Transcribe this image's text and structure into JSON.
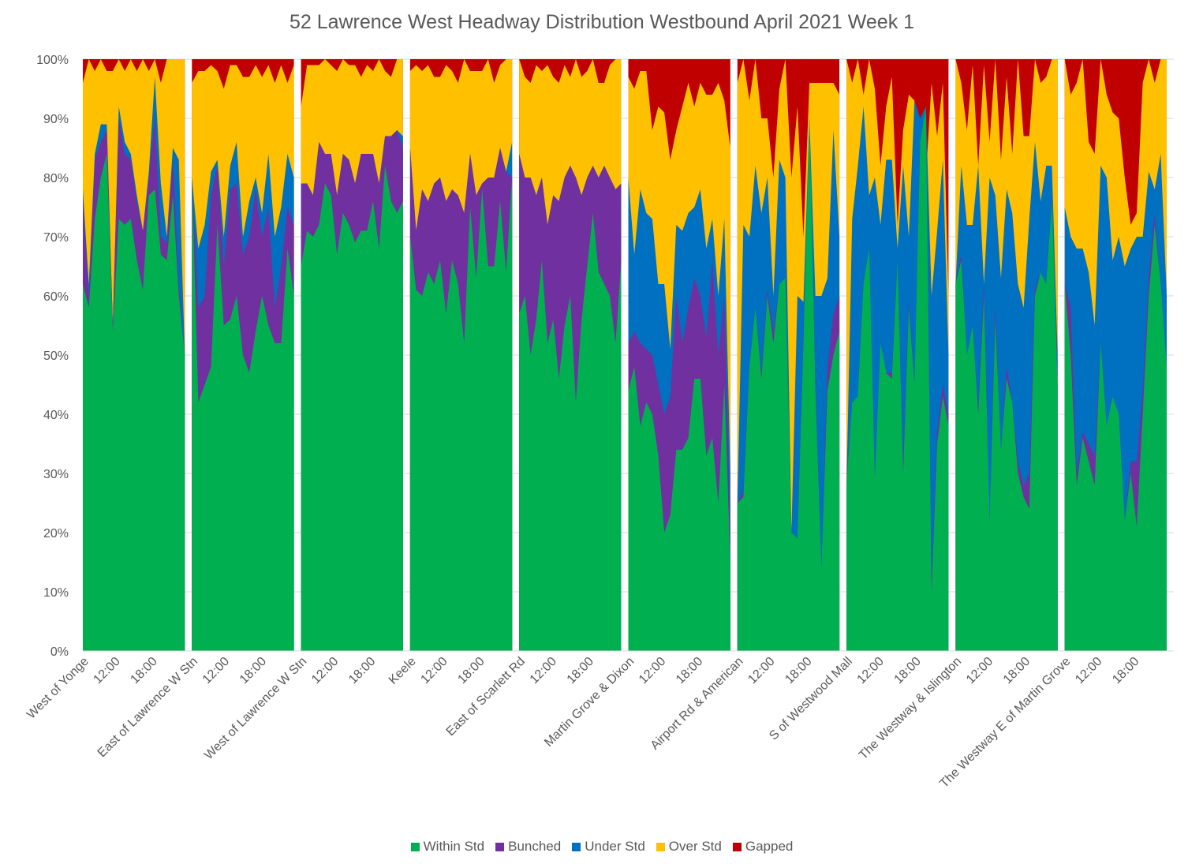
{
  "chart_data": {
    "type": "area",
    "stacked": "percent",
    "title": "52 Lawrence West  Headway Distribution Westbound April 2021 Week 1",
    "xlabel": "",
    "ylabel": "",
    "ylim": [
      0,
      100
    ],
    "yticks": [
      "0%",
      "10%",
      "20%",
      "30%",
      "40%",
      "50%",
      "60%",
      "70%",
      "80%",
      "90%",
      "100%"
    ],
    "grid": true,
    "legend_position": "bottom",
    "series": [
      {
        "name": "Within Std",
        "color": "#00B050"
      },
      {
        "name": "Bunched",
        "color": "#7030A0"
      },
      {
        "name": "Under Std",
        "color": "#0070C0"
      },
      {
        "name": "Over Std",
        "color": "#FFC000"
      },
      {
        "name": "Gapped",
        "color": "#C00000"
      }
    ],
    "x_time_ticks": [
      "12:00",
      "18:00"
    ],
    "stops": [
      {
        "name": "West of Yonge",
        "cumulative_tops": {
          "within": [
            62,
            58,
            73,
            80,
            84,
            54,
            73,
            72,
            73,
            66,
            61,
            77,
            78,
            67,
            66,
            77,
            60,
            50
          ],
          "bunched": [
            77,
            60,
            83,
            86,
            88,
            55,
            90,
            84,
            83,
            76,
            71,
            80,
            90,
            70,
            69,
            83,
            62,
            50
          ],
          "under": [
            78,
            62,
            84,
            89,
            89,
            55,
            92,
            86,
            84,
            77,
            71,
            81,
            97,
            79,
            70,
            85,
            83,
            50
          ],
          "over": [
            96,
            100,
            98,
            100,
            98,
            98,
            100,
            98,
            100,
            98,
            100,
            98,
            100,
            96,
            100,
            100,
            100,
            100
          ]
        }
      },
      {
        "name": "East of Lawrence W Stn",
        "cumulative_tops": {
          "within": [
            80,
            42,
            45,
            48,
            72,
            55,
            56,
            60,
            50,
            47,
            54,
            60,
            55,
            52,
            52,
            68,
            60
          ],
          "bunched": [
            80,
            58,
            60,
            77,
            82,
            65,
            78,
            79,
            67,
            70,
            78,
            70,
            75,
            58,
            65,
            75,
            72
          ],
          "under": [
            80,
            68,
            72,
            81,
            83,
            70,
            82,
            86,
            70,
            76,
            80,
            74,
            84,
            70,
            75,
            84,
            80
          ],
          "over": [
            96,
            98,
            98,
            99,
            98,
            95,
            99,
            99,
            97,
            97,
            99,
            97,
            99,
            96,
            99,
            96,
            99
          ]
        }
      },
      {
        "name": "West of Lawrence W Stn",
        "cumulative_tops": {
          "within": [
            65,
            71,
            70,
            72,
            79,
            77,
            67,
            74,
            72,
            69,
            71,
            71,
            76,
            68,
            82,
            76,
            74,
            76
          ],
          "bunched": [
            79,
            79,
            77,
            86,
            84,
            84,
            77,
            84,
            83,
            79,
            84,
            84,
            84,
            79,
            87,
            87,
            88,
            85
          ],
          "under": [
            79,
            79,
            77,
            86,
            84,
            84,
            77,
            84,
            83,
            79,
            84,
            84,
            84,
            79,
            87,
            87,
            88,
            87
          ],
          "over": [
            92,
            99,
            99,
            99,
            100,
            99,
            98,
            100,
            99,
            99,
            97,
            99,
            98,
            100,
            98,
            97,
            100,
            100
          ]
        }
      },
      {
        "name": "Keele",
        "cumulative_tops": {
          "within": [
            70,
            61,
            60,
            64,
            62,
            66,
            57,
            66,
            62,
            52,
            75,
            63,
            78,
            65,
            65,
            76,
            64,
            80
          ],
          "bunched": [
            85,
            71,
            78,
            76,
            79,
            80,
            76,
            78,
            77,
            74,
            84,
            77,
            79,
            80,
            80,
            85,
            81,
            80
          ],
          "under": [
            85,
            71,
            78,
            76,
            79,
            80,
            76,
            78,
            77,
            74,
            84,
            77,
            79,
            80,
            80,
            85,
            81,
            86
          ],
          "over": [
            98,
            99,
            98,
            99,
            97,
            97,
            99,
            98,
            96,
            100,
            98,
            98,
            98,
            100,
            96,
            99,
            100,
            100
          ]
        }
      },
      {
        "name": "East of Scarlett Rd",
        "cumulative_tops": {
          "within": [
            57,
            60,
            50,
            56,
            66,
            52,
            56,
            46,
            55,
            60,
            42,
            56,
            65,
            74,
            64,
            62,
            60,
            52,
            66
          ],
          "bunched": [
            84,
            80,
            80,
            77,
            80,
            72,
            77,
            76,
            80,
            82,
            80,
            77,
            80,
            82,
            80,
            82,
            80,
            78,
            79
          ],
          "under": [
            84,
            80,
            80,
            77,
            80,
            72,
            77,
            76,
            80,
            82,
            80,
            77,
            80,
            82,
            80,
            82,
            80,
            78,
            79
          ],
          "over": [
            100,
            97,
            96,
            99,
            98,
            99,
            97,
            96,
            99,
            97,
            100,
            97,
            98,
            100,
            96,
            96,
            99,
            100,
            100
          ]
        }
      },
      {
        "name": "Martin Grove & Dixon",
        "cumulative_tops": {
          "within": [
            44,
            48,
            38,
            42,
            40,
            33,
            20,
            23,
            34,
            34,
            36,
            46,
            46,
            33,
            36,
            25,
            45,
            15
          ],
          "bunched": [
            52,
            54,
            52,
            51,
            50,
            45,
            40,
            43,
            60,
            52,
            58,
            63,
            60,
            53,
            66,
            50,
            60,
            20
          ],
          "under": [
            80,
            67,
            78,
            74,
            73,
            62,
            62,
            51,
            72,
            71,
            74,
            75,
            78,
            68,
            73,
            60,
            73,
            30
          ],
          "over": [
            97,
            95,
            98,
            98,
            88,
            92,
            91,
            83,
            88,
            92,
            96,
            92,
            96,
            94,
            94,
            96,
            93,
            85
          ]
        }
      },
      {
        "name": "Airport Rd & American",
        "cumulative_tops": {
          "within": [
            25,
            26,
            48,
            58,
            46,
            60,
            52,
            62,
            63,
            20,
            19,
            52,
            90,
            44,
            14,
            44,
            50,
            54
          ],
          "bunched": [
            25,
            27,
            48,
            58,
            47,
            61,
            54,
            62,
            63,
            20,
            19,
            53,
            90,
            45,
            14,
            48,
            57,
            60
          ],
          "under": [
            25,
            72,
            70,
            82,
            74,
            80,
            60,
            83,
            80,
            20,
            60,
            59,
            90,
            60,
            60,
            63,
            88,
            70
          ],
          "over": [
            96,
            100,
            93,
            100,
            90,
            90,
            80,
            95,
            100,
            80,
            92,
            70,
            96,
            96,
            96,
            96,
            96,
            94
          ]
        }
      },
      {
        "name": "S of Westwood Mall",
        "cumulative_tops": {
          "within": [
            28,
            42,
            43,
            62,
            68,
            29,
            52,
            47,
            46,
            66,
            30,
            58,
            45,
            86,
            92,
            10,
            35,
            43,
            38
          ],
          "bunched": [
            28,
            42,
            43,
            62,
            68,
            29,
            52,
            47,
            47,
            66,
            32,
            59,
            45,
            86,
            92,
            12,
            37,
            45,
            40
          ],
          "under": [
            28,
            73,
            82,
            92,
            77,
            80,
            72,
            83,
            83,
            68,
            82,
            70,
            93,
            90,
            92,
            60,
            71,
            83,
            50
          ],
          "over": [
            100,
            96,
            100,
            94,
            100,
            95,
            82,
            92,
            97,
            72,
            88,
            94,
            93,
            62,
            80,
            96,
            87,
            96,
            60
          ]
        }
      },
      {
        "name": "The Westway & Islington",
        "cumulative_tops": {
          "within": [
            62,
            66,
            50,
            55,
            40,
            60,
            22,
            56,
            34,
            46,
            42,
            30,
            26,
            24,
            60,
            64,
            62,
            76,
            45
          ],
          "bunched": [
            62,
            67,
            50,
            55,
            41,
            62,
            22,
            58,
            34,
            48,
            42,
            32,
            28,
            30,
            61,
            64,
            62,
            76,
            45
          ],
          "under": [
            62,
            82,
            72,
            72,
            82,
            62,
            80,
            77,
            63,
            78,
            74,
            62,
            58,
            73,
            86,
            76,
            82,
            82,
            50
          ],
          "over": [
            100,
            96,
            88,
            99,
            82,
            99,
            86,
            100,
            83,
            97,
            84,
            100,
            87,
            87,
            100,
            96,
            97,
            100,
            100
          ]
        }
      },
      {
        "name": "The Westway E of Martin Grove",
        "cumulative_tops": {
          "within": [
            62,
            50,
            28,
            36,
            32,
            28,
            52,
            38,
            43,
            40,
            22,
            30,
            21,
            40,
            60,
            72,
            62,
            48
          ],
          "bunched": [
            62,
            58,
            30,
            37,
            35,
            33,
            52,
            38,
            43,
            40,
            22,
            32,
            32,
            44,
            63,
            74,
            62,
            48
          ],
          "under": [
            75,
            70,
            68,
            68,
            64,
            55,
            82,
            80,
            66,
            70,
            65,
            68,
            70,
            70,
            81,
            78,
            84,
            60
          ],
          "over": [
            100,
            94,
            96,
            100,
            86,
            84,
            100,
            94,
            91,
            90,
            80,
            72,
            74,
            96,
            100,
            96,
            100,
            100
          ]
        }
      }
    ]
  },
  "legend": {
    "items": [
      {
        "label": "Within Std",
        "color": "#00B050"
      },
      {
        "label": "Bunched",
        "color": "#7030A0"
      },
      {
        "label": "Under Std",
        "color": "#0070C0"
      },
      {
        "label": "Over Std",
        "color": "#FFC000"
      },
      {
        "label": "Gapped",
        "color": "#C00000"
      }
    ]
  }
}
